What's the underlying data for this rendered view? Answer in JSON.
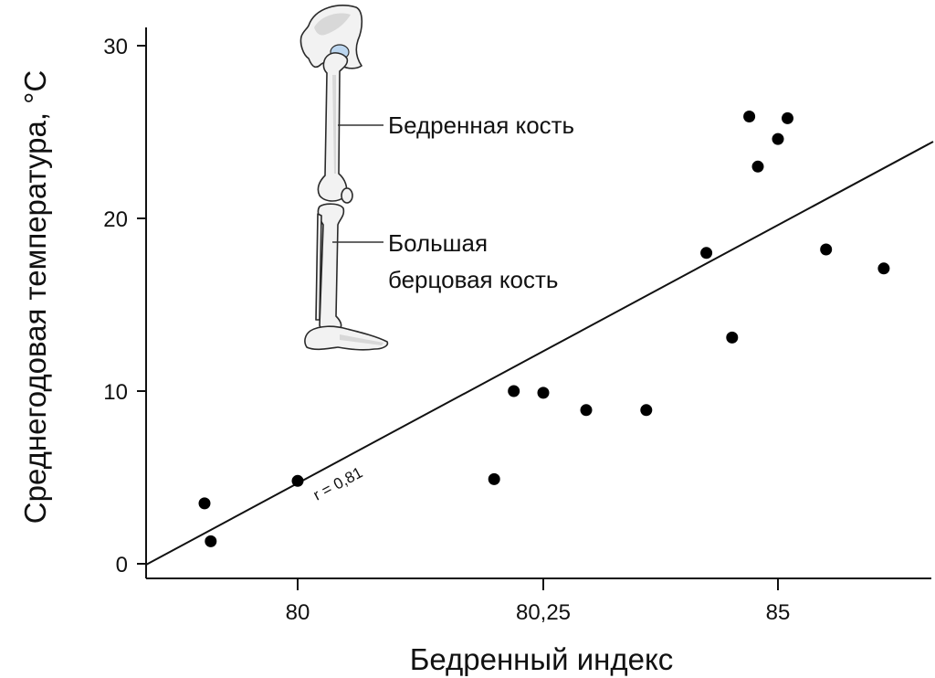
{
  "chart_data": {
    "type": "scatter",
    "title": "",
    "xlabel": "Бедренный индекс",
    "ylabel": "Среднегодовая температура, °С",
    "x_ticks": [
      "80",
      "80,25",
      "85"
    ],
    "y_ticks": [
      "0",
      "10",
      "20",
      "30"
    ],
    "ylim": [
      0,
      30
    ],
    "grid": false,
    "points": [
      {
        "x": 79.7,
        "y": 3.5
      },
      {
        "x": 79.72,
        "y": 1.3
      },
      {
        "x": 80.0,
        "y": 4.8
      },
      {
        "x": 80.2,
        "y": 4.9
      },
      {
        "x": 80.22,
        "y": 10.0
      },
      {
        "x": 80.25,
        "y": 9.9
      },
      {
        "x": 80.3,
        "y": 8.9
      },
      {
        "x": 80.37,
        "y": 8.9
      },
      {
        "x": 80.44,
        "y": 18.0
      },
      {
        "x": 80.47,
        "y": 13.1
      },
      {
        "x": 80.49,
        "y": 25.9
      },
      {
        "x": 80.5,
        "y": 23.0
      },
      {
        "x": 85.0,
        "y": 24.6
      },
      {
        "x": 85.1,
        "y": 25.8
      },
      {
        "x": 85.5,
        "y": 18.2
      },
      {
        "x": 86.1,
        "y": 17.1
      }
    ],
    "trendline": {
      "label": "r = 0,81"
    },
    "annotations": {
      "femur": "Бедренная кость",
      "tibia_line1": "Большая",
      "tibia_line2": "берцовая кость"
    }
  }
}
